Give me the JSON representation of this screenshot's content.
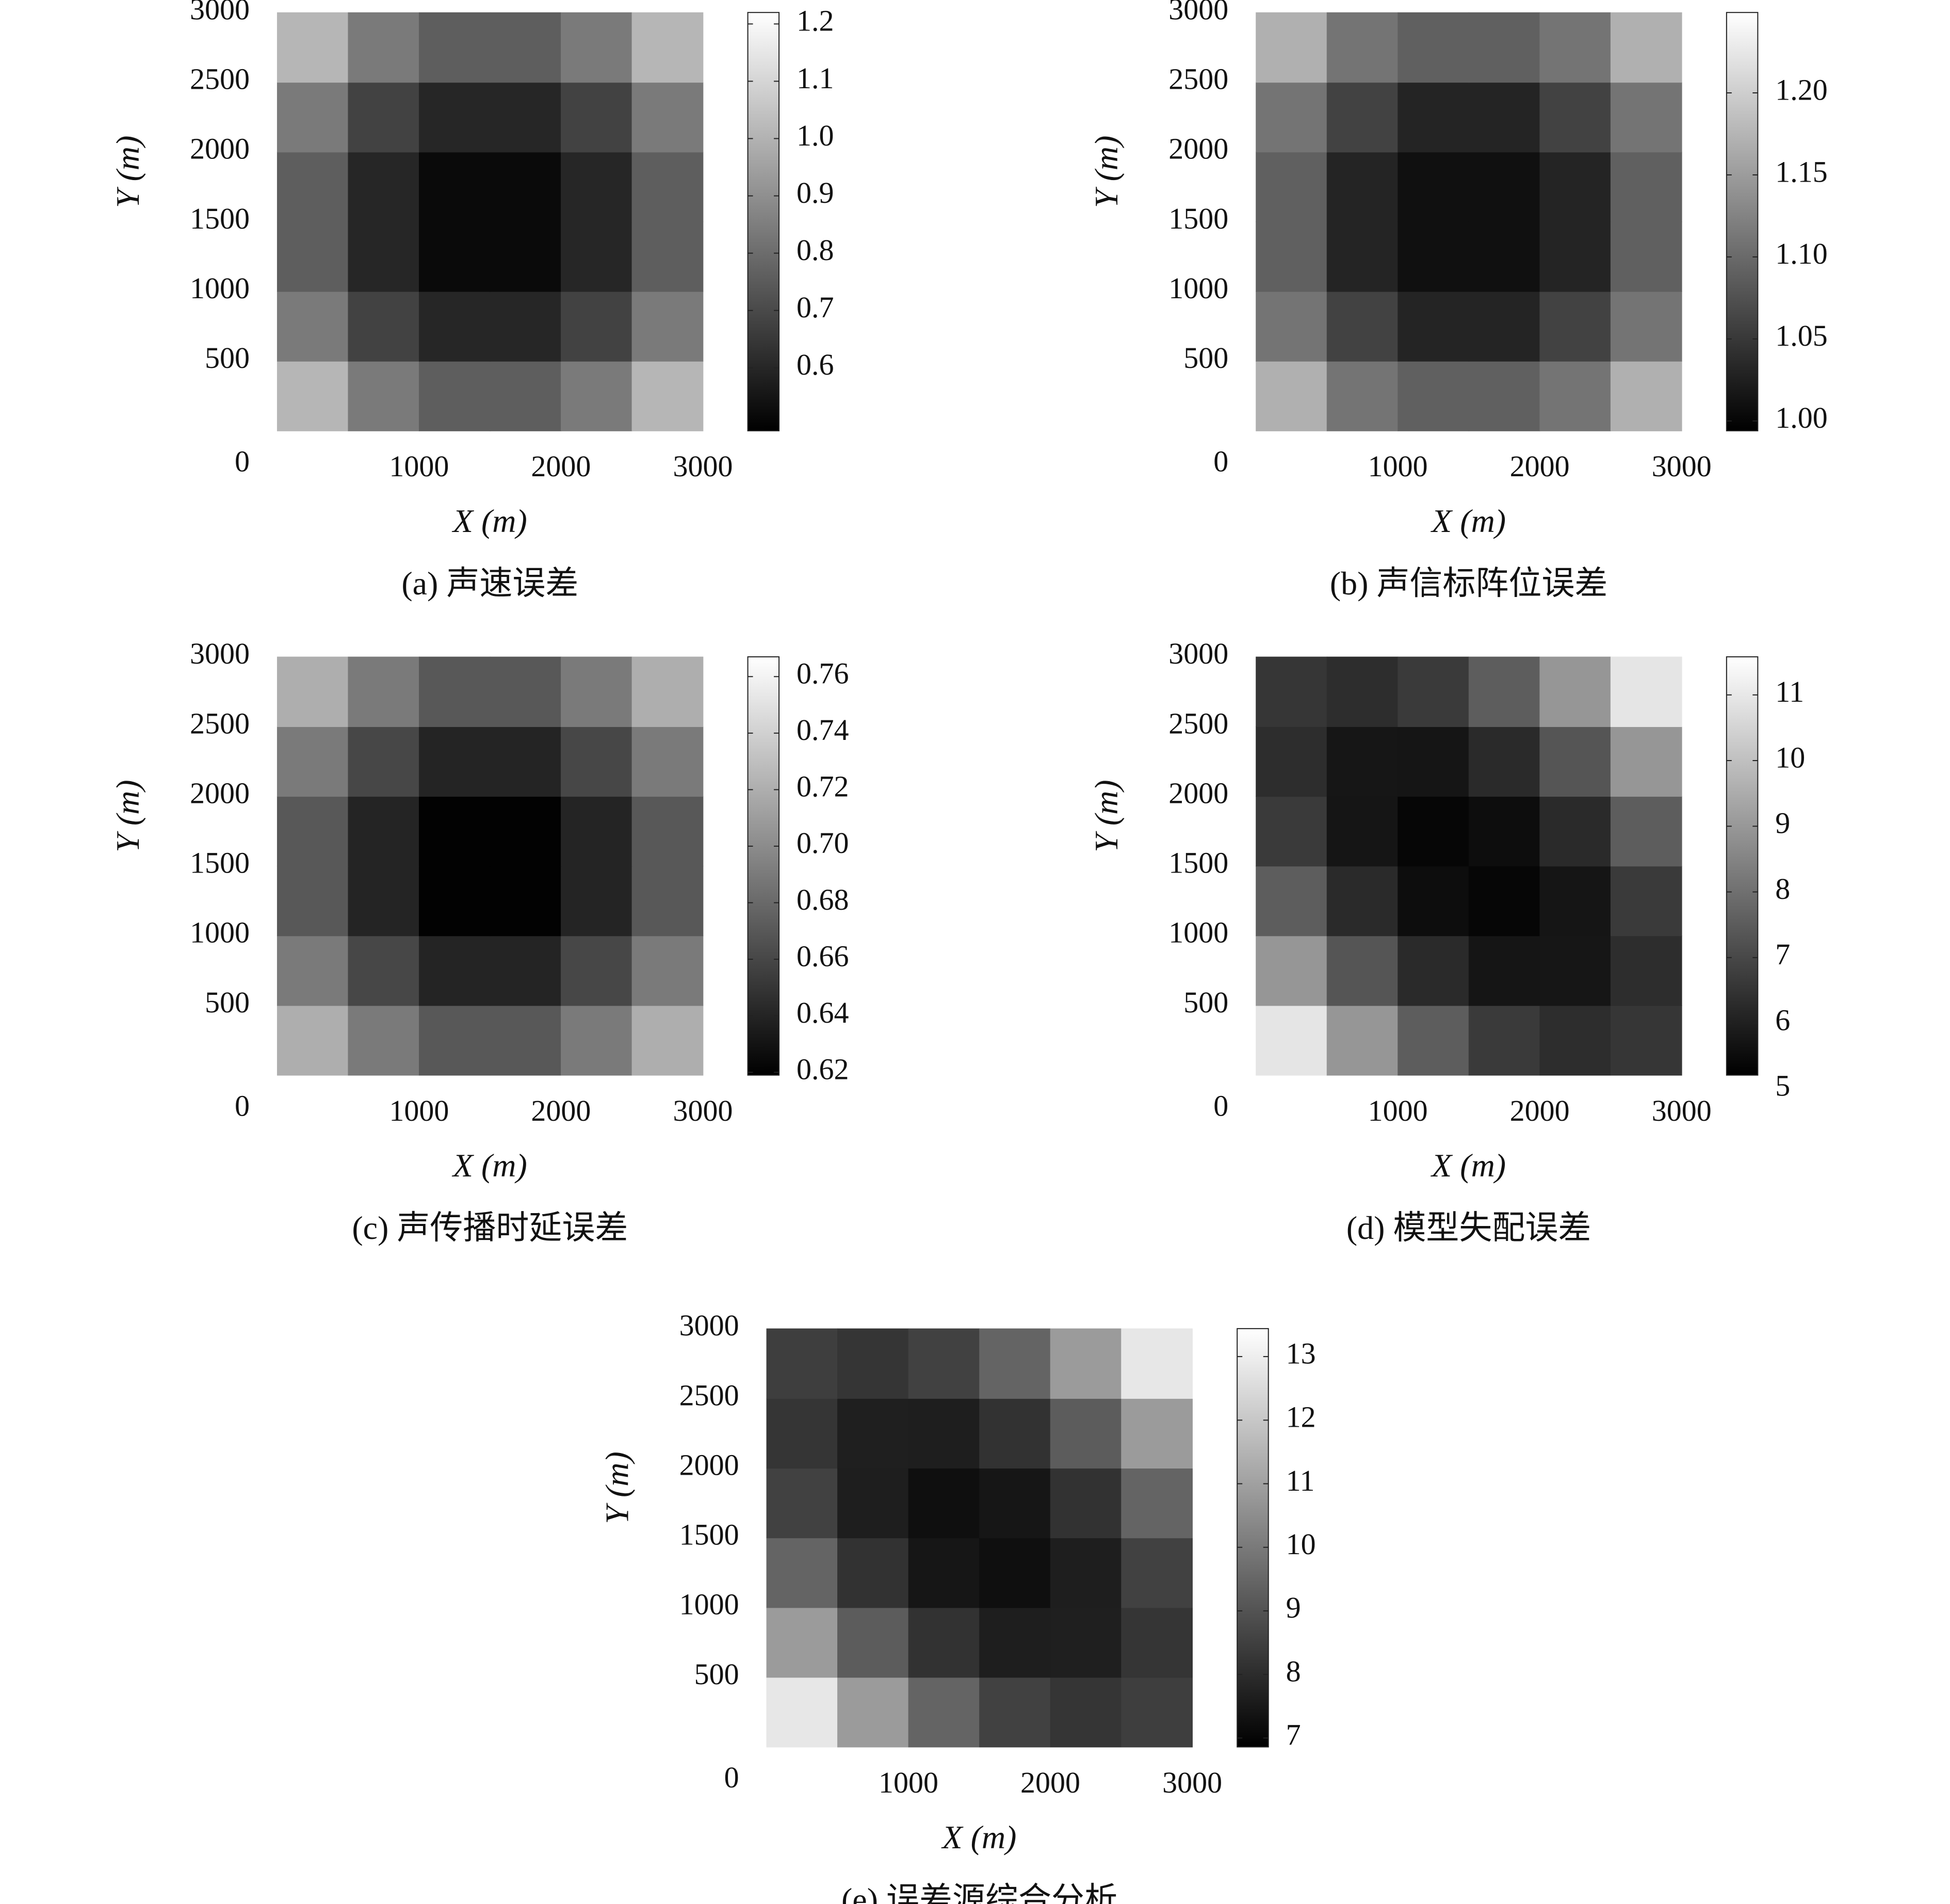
{
  "chart_data": [
    {
      "type": "heatmap",
      "caption": "(a) 声速误差",
      "xlabel": "X (m)",
      "ylabel": "Y (m)",
      "x": [
        250,
        750,
        1250,
        1750,
        2250,
        2750
      ],
      "y": [
        250,
        750,
        1250,
        1750,
        2250,
        2750
      ],
      "z": [
        [
          1.01,
          0.84,
          0.76,
          0.76,
          0.84,
          1.01
        ],
        [
          0.84,
          0.68,
          0.6,
          0.6,
          0.68,
          0.84
        ],
        [
          0.76,
          0.6,
          0.52,
          0.52,
          0.6,
          0.76
        ],
        [
          0.76,
          0.6,
          0.52,
          0.52,
          0.6,
          0.76
        ],
        [
          0.84,
          0.68,
          0.6,
          0.6,
          0.68,
          0.84
        ],
        [
          1.01,
          0.84,
          0.76,
          0.76,
          0.84,
          1.01
        ]
      ],
      "xlim": [
        0,
        3000
      ],
      "ylim": [
        0,
        3000
      ],
      "xticks": [
        0,
        1000,
        2000,
        3000
      ],
      "yticks": [
        500,
        1000,
        1500,
        2000,
        2500,
        3000
      ],
      "colormap": "gray",
      "clim": [
        0.49,
        1.22
      ],
      "cticks": [
        0.6,
        0.7,
        0.8,
        0.9,
        {
          "value": 1,
          "label": "1.0"
        },
        1.1,
        1.2
      ]
    },
    {
      "type": "heatmap",
      "caption": "(b) 声信标阵位误差",
      "xlabel": "X (m)",
      "ylabel": "Y (m)",
      "x": [
        250,
        750,
        1250,
        1750,
        2250,
        2750
      ],
      "y": [
        250,
        750,
        1250,
        1750,
        2250,
        2750
      ],
      "z": [
        [
          1.17,
          1.11,
          1.09,
          1.09,
          1.11,
          1.17
        ],
        [
          1.11,
          1.06,
          1.03,
          1.03,
          1.06,
          1.11
        ],
        [
          1.09,
          1.03,
          1.01,
          1.01,
          1.03,
          1.09
        ],
        [
          1.09,
          1.03,
          1.01,
          1.01,
          1.03,
          1.09
        ],
        [
          1.11,
          1.06,
          1.03,
          1.03,
          1.06,
          1.11
        ],
        [
          1.17,
          1.11,
          1.09,
          1.09,
          1.11,
          1.17
        ]
      ],
      "xlim": [
        0,
        3000
      ],
      "ylim": [
        0,
        3000
      ],
      "xticks": [
        0,
        1000,
        2000,
        3000
      ],
      "yticks": [
        500,
        1000,
        1500,
        2000,
        2500,
        3000
      ],
      "colormap": "gray",
      "clim": [
        0.994,
        1.249
      ],
      "cticks": [
        {
          "value": 1,
          "label": "1.00"
        },
        1.05,
        {
          "value": 1.1,
          "label": "1.10"
        },
        1.15,
        {
          "value": 1.2,
          "label": "1.20"
        }
      ]
    },
    {
      "type": "heatmap",
      "caption": "(c) 声传播时延误差",
      "xlabel": "X (m)",
      "ylabel": "Y (m)",
      "x": [
        250,
        750,
        1250,
        1750,
        2250,
        2750
      ],
      "y": [
        250,
        750,
        1250,
        1750,
        2250,
        2750
      ],
      "z": [
        [
          0.72,
          0.69,
          0.67,
          0.67,
          0.69,
          0.72
        ],
        [
          0.69,
          0.66,
          0.64,
          0.64,
          0.66,
          0.69
        ],
        [
          0.67,
          0.64,
          0.62,
          0.62,
          0.64,
          0.67
        ],
        [
          0.67,
          0.64,
          0.62,
          0.62,
          0.64,
          0.67
        ],
        [
          0.69,
          0.66,
          0.64,
          0.64,
          0.66,
          0.69
        ],
        [
          0.72,
          0.69,
          0.67,
          0.67,
          0.69,
          0.72
        ]
      ],
      "xlim": [
        0,
        3000
      ],
      "ylim": [
        0,
        3000
      ],
      "xticks": [
        0,
        1000,
        2000,
        3000
      ],
      "yticks": [
        500,
        1000,
        1500,
        2000,
        2500,
        3000
      ],
      "colormap": "gray",
      "clim": [
        0.619,
        0.767
      ],
      "cticks": [
        0.62,
        0.64,
        0.66,
        0.68,
        {
          "value": 0.7,
          "label": "0.70"
        },
        0.72,
        0.74,
        0.76
      ]
    },
    {
      "type": "heatmap",
      "caption": "(d) 模型失配误差",
      "xlabel": "X (m)",
      "ylabel": "Y (m)",
      "x": [
        250,
        750,
        1250,
        1750,
        2250,
        2750
      ],
      "y": [
        250,
        750,
        1250,
        1750,
        2250,
        2750
      ],
      "z": [
        [
          10.93,
          8.95,
          7.53,
          6.65,
          6.33,
          6.55
        ],
        [
          8.95,
          7.33,
          6.25,
          5.73,
          5.75,
          6.33
        ],
        [
          7.53,
          6.25,
          5.53,
          5.35,
          5.73,
          6.65
        ],
        [
          6.65,
          5.73,
          5.35,
          5.53,
          6.25,
          7.53
        ],
        [
          6.33,
          5.75,
          5.73,
          6.25,
          7.33,
          8.95
        ],
        [
          6.55,
          6.33,
          6.65,
          7.53,
          8.95,
          10.93
        ]
      ],
      "xlim": [
        0,
        3000
      ],
      "ylim": [
        0,
        3000
      ],
      "xticks": [
        0,
        1000,
        2000,
        3000
      ],
      "yticks": [
        500,
        1000,
        1500,
        2000,
        2500,
        3000
      ],
      "colormap": "gray",
      "clim": [
        5.21,
        11.58
      ],
      "cticks": [
        5,
        6,
        7,
        8,
        9,
        10,
        11
      ]
    },
    {
      "type": "heatmap",
      "caption": "(e) 误差源综合分析",
      "xlabel": "X (m)",
      "ylabel": "Y (m)",
      "x": [
        250,
        750,
        1250,
        1750,
        2250,
        2750
      ],
      "y": [
        250,
        750,
        1250,
        1750,
        2250,
        2750
      ],
      "z": [
        [
          12.83,
          10.85,
          9.43,
          8.55,
          8.23,
          8.45
        ],
        [
          10.85,
          9.23,
          8.15,
          7.63,
          7.65,
          8.23
        ],
        [
          9.43,
          8.15,
          7.43,
          7.25,
          7.63,
          8.55
        ],
        [
          8.55,
          7.63,
          7.25,
          7.43,
          8.15,
          9.43
        ],
        [
          8.23,
          7.65,
          7.63,
          8.15,
          9.23,
          10.85
        ],
        [
          8.45,
          8.23,
          8.55,
          9.43,
          10.85,
          12.83
        ]
      ],
      "xlim": [
        0,
        3000
      ],
      "ylim": [
        0,
        3000
      ],
      "xticks": [
        0,
        1000,
        2000,
        3000
      ],
      "yticks": [
        500,
        1000,
        1500,
        2000,
        2500,
        3000
      ],
      "colormap": "gray",
      "clim": [
        6.86,
        13.44
      ],
      "cticks": [
        7,
        8,
        9,
        10,
        11,
        12,
        13
      ]
    }
  ]
}
